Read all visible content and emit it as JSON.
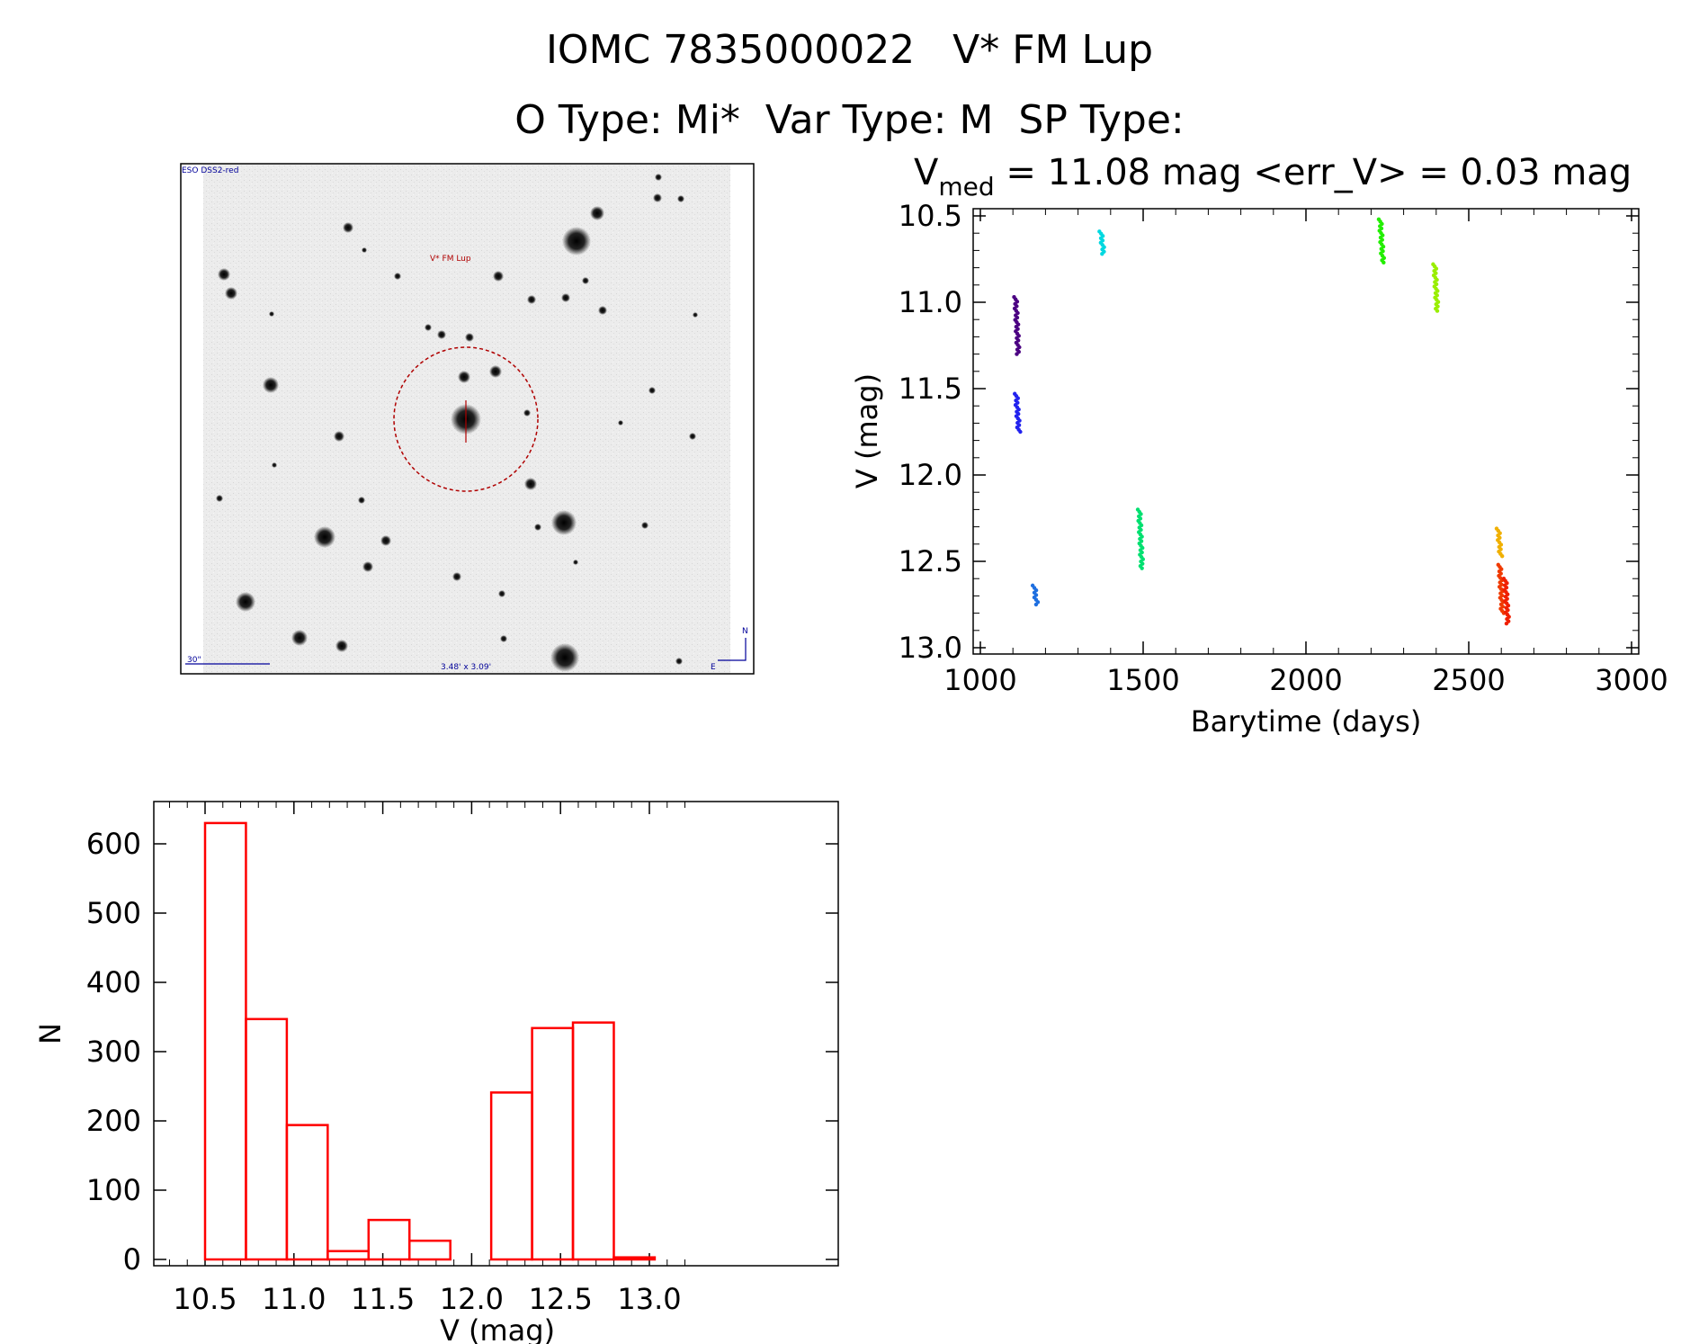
{
  "header": {
    "title": "IOMC 7835000022   V* FM Lup",
    "subtitle": "O Type: Mi*  Var Type: M  SP Type:"
  },
  "image_panel": {
    "survey_label": "ESO DSS2-red",
    "target_label": "V* FM Lup",
    "scale_label": "30\"",
    "size_label": "3.48' x 3.09'",
    "compass_n": "N",
    "compass_e": "E"
  },
  "colors": {
    "histogram": "#ff0000",
    "circle": "#b00000",
    "annotation": "#000099"
  },
  "chart_data": [
    {
      "type": "scatter",
      "title_main": "V",
      "title_sub": "med",
      "title_rest": " = 11.08 mag <err_V> = 0.03 mag",
      "xlabel": "Barytime (days)",
      "ylabel": "V (mag)",
      "xlim": [
        1000,
        3000
      ],
      "ylim": [
        13.0,
        10.5
      ],
      "y_inverted": true,
      "xticks": [
        1000,
        1500,
        2000,
        2500,
        3000
      ],
      "yticks": [
        "10.5",
        "11.0",
        "11.5",
        "12.0",
        "12.5",
        "13.0"
      ],
      "groups": [
        {
          "x": 1108,
          "y_min": 10.97,
          "y_max": 11.3,
          "color": "#4b0082"
        },
        {
          "x": 1110,
          "y_min": 11.53,
          "y_max": 11.75,
          "color": "#2222ee"
        },
        {
          "x": 1165,
          "y_min": 12.64,
          "y_max": 12.75,
          "color": "#1e6fe0"
        },
        {
          "x": 1370,
          "y_min": 10.59,
          "y_max": 10.72,
          "color": "#00d8e0"
        },
        {
          "x": 1488,
          "y_min": 12.2,
          "y_max": 12.54,
          "color": "#00e070"
        },
        {
          "x": 2228,
          "y_min": 10.52,
          "y_max": 10.77,
          "color": "#22ee00"
        },
        {
          "x": 2395,
          "y_min": 10.78,
          "y_max": 11.05,
          "color": "#99ee00"
        },
        {
          "x": 2590,
          "y_min": 12.31,
          "y_max": 12.47,
          "color": "#f0b000"
        },
        {
          "x": 2595,
          "y_min": 12.52,
          "y_max": 12.8,
          "color": "#f03a00"
        },
        {
          "x": 2612,
          "y_min": 12.6,
          "y_max": 12.86,
          "color": "#f02000"
        }
      ]
    },
    {
      "type": "bar",
      "histogram": true,
      "xlabel": "V (mag)",
      "ylabel": "N",
      "xlim": [
        10.5,
        13.0
      ],
      "ylim": [
        0,
        650
      ],
      "xticks": [
        "10.5",
        "11.0",
        "11.5",
        "12.0",
        "12.5",
        "13.0"
      ],
      "yticks": [
        "0",
        "100",
        "200",
        "300",
        "400",
        "500",
        "600"
      ],
      "bin_edges": [
        10.5,
        10.73,
        10.96,
        11.19,
        11.42,
        11.65,
        11.88,
        12.11,
        12.34,
        12.57,
        12.8,
        13.03
      ],
      "values": [
        630,
        347,
        194,
        12,
        57,
        27,
        0,
        241,
        334,
        342,
        3
      ]
    }
  ]
}
